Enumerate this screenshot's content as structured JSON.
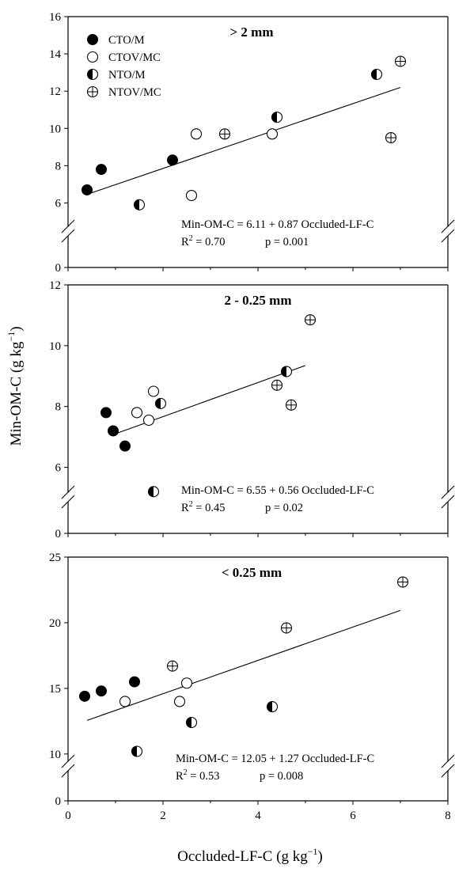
{
  "chart_data": {
    "type": "scatter",
    "xlabel": "Occluded-LF-C (g kg",
    "xlabel_sup": "−1",
    "xlabel_tail": ")",
    "ylabel": "Min-OM-C (g kg",
    "ylabel_sup": "−1",
    "ylabel_tail": ")",
    "xlim": [
      0,
      8
    ],
    "x_ticks": [
      "0",
      "2",
      "4",
      "6",
      "8"
    ],
    "legend": {
      "placement": "top-left of top panel",
      "entries": [
        {
          "label": "CTO/M",
          "marker": "filled-circle"
        },
        {
          "label": "CTOV/MC",
          "marker": "open-circle"
        },
        {
          "label": "NTO/M",
          "marker": "half-filled-circle"
        },
        {
          "label": "NTOV/MC",
          "marker": "crossed-circle"
        }
      ]
    },
    "panels": [
      {
        "title": "> 2 mm",
        "ylim": [
          5,
          16
        ],
        "y_ticks": [
          "0",
          "6",
          "8",
          "10",
          "12",
          "14",
          "16"
        ],
        "axis_break": true,
        "equation": "Min-OM-C = 6.11 + 0.87 Occluded-LF-C",
        "r2_label": "R",
        "r2_sup": "2",
        "r2_value": " = 0.70",
        "p_text": "p = 0.001",
        "fit": {
          "x": [
            0.4,
            7.0
          ],
          "y": [
            6.46,
            12.2
          ]
        },
        "series": [
          {
            "name": "CTO/M",
            "points": [
              [
                0.4,
                6.7
              ],
              [
                0.7,
                7.8
              ],
              [
                2.2,
                8.3
              ]
            ]
          },
          {
            "name": "CTOV/MC",
            "points": [
              [
                2.7,
                9.7
              ],
              [
                2.6,
                6.4
              ],
              [
                4.3,
                9.7
              ]
            ]
          },
          {
            "name": "NTO/M",
            "points": [
              [
                1.5,
                5.9
              ],
              [
                4.4,
                10.6
              ],
              [
                6.5,
                12.9
              ]
            ]
          },
          {
            "name": "NTOV/MC",
            "points": [
              [
                3.3,
                9.7
              ],
              [
                6.8,
                9.5
              ],
              [
                7.0,
                13.6
              ]
            ]
          }
        ]
      },
      {
        "title": "2 - 0.25 mm",
        "ylim": [
          5,
          12
        ],
        "y_ticks": [
          "0",
          "6",
          "8",
          "10",
          "12"
        ],
        "axis_break": true,
        "equation": "Min-OM-C = 6.55 + 0.56 Occluded-LF-C",
        "r2_label": "R",
        "r2_sup": "2",
        "r2_value": " = 0.45",
        "p_text": "p = 0.02",
        "fit": {
          "x": [
            0.9,
            5.0
          ],
          "y": [
            7.05,
            9.35
          ]
        },
        "series": [
          {
            "name": "CTO/M",
            "points": [
              [
                0.8,
                7.8
              ],
              [
                0.95,
                7.2
              ],
              [
                1.2,
                6.7
              ]
            ]
          },
          {
            "name": "CTOV/MC",
            "points": [
              [
                1.45,
                7.8
              ],
              [
                1.7,
                7.55
              ],
              [
                1.8,
                8.5
              ]
            ]
          },
          {
            "name": "NTO/M",
            "points": [
              [
                1.8,
                5.2
              ],
              [
                1.95,
                8.1
              ],
              [
                4.6,
                9.15
              ]
            ]
          },
          {
            "name": "NTOV/MC",
            "points": [
              [
                4.4,
                8.7
              ],
              [
                4.7,
                8.05
              ],
              [
                5.1,
                10.85
              ]
            ]
          }
        ]
      },
      {
        "title": "< 0.25 mm",
        "ylim": [
          8,
          25
        ],
        "y_ticks": [
          "0",
          "10",
          "15",
          "20",
          "25"
        ],
        "axis_break": true,
        "equation": "Min-OM-C = 12.05 + 1.27 Occluded-LF-C",
        "r2_label": "R",
        "r2_sup": "2",
        "r2_value": " = 0.53",
        "p_text": "p = 0.008",
        "fit": {
          "x": [
            0.4,
            7.0
          ],
          "y": [
            12.56,
            20.94
          ]
        },
        "series": [
          {
            "name": "CTO/M",
            "points": [
              [
                0.35,
                14.4
              ],
              [
                0.7,
                14.8
              ],
              [
                1.4,
                15.5
              ]
            ]
          },
          {
            "name": "CTOV/MC",
            "points": [
              [
                1.2,
                14.0
              ],
              [
                2.35,
                14.0
              ],
              [
                2.5,
                15.4
              ]
            ]
          },
          {
            "name": "NTO/M",
            "points": [
              [
                1.45,
                10.2
              ],
              [
                2.6,
                12.4
              ],
              [
                4.3,
                13.6
              ]
            ]
          },
          {
            "name": "NTOV/MC",
            "points": [
              [
                2.2,
                16.7
              ],
              [
                4.6,
                19.6
              ],
              [
                7.05,
                23.1
              ]
            ]
          }
        ]
      }
    ]
  }
}
